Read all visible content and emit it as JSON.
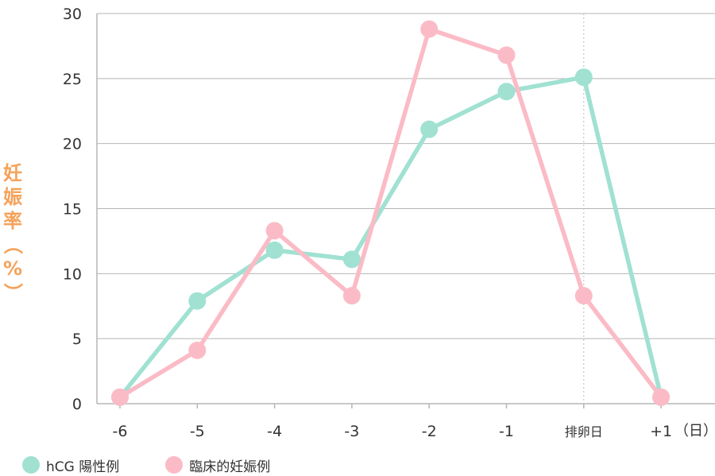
{
  "chart_data": {
    "type": "line",
    "ylabel": "妊娠率（%）",
    "x_unit": "（日）",
    "categories": [
      "-6",
      "-5",
      "-4",
      "-3",
      "-2",
      "-1",
      "排卵日",
      "+1"
    ],
    "ylim": [
      0,
      30
    ],
    "yticks": [
      0,
      5,
      10,
      15,
      20,
      25,
      30
    ],
    "grid": true,
    "legend_position": "bottom-left",
    "series": [
      {
        "name": "hCG 陽性例",
        "color": "#a0e1d2",
        "values": [
          0.5,
          7.9,
          11.8,
          11.1,
          21.1,
          24.0,
          25.1,
          0.5
        ]
      },
      {
        "name": "臨床的妊娠例",
        "color": "#fbbbc6",
        "values": [
          0.5,
          4.1,
          13.3,
          8.3,
          28.8,
          26.8,
          8.3,
          0.5
        ]
      }
    ],
    "ylabel_color": "#f5a25a",
    "axis_color": "#b5b5b5"
  }
}
